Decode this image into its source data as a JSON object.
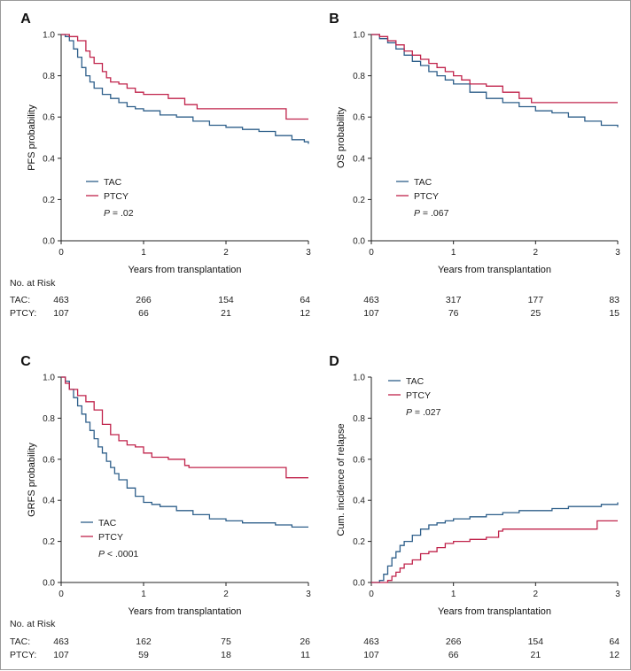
{
  "colors": {
    "TAC": "#2e5f8a",
    "PTCY": "#c0234b"
  },
  "risk_title": "No. at Risk",
  "risk_rows": [
    "TAC:",
    "PTCY:"
  ],
  "chart_data": [
    {
      "panel": "A",
      "type": "line",
      "step": true,
      "xlabel": "Years from transplantation",
      "ylabel": "PFS probability",
      "xlim": [
        0,
        3
      ],
      "ylim": [
        0,
        1.0
      ],
      "xticks": [
        "0",
        "1",
        "2",
        "3"
      ],
      "yticks": [
        "0.0",
        "0.2",
        "0.4",
        "0.6",
        "0.8",
        "1.0"
      ],
      "legend_position": "bottom-left",
      "pvalue": {
        "prefix": "P",
        "text": " = .02"
      },
      "series": [
        {
          "name": "TAC",
          "points": [
            [
              0,
              1.0
            ],
            [
              0.05,
              0.99
            ],
            [
              0.1,
              0.97
            ],
            [
              0.15,
              0.93
            ],
            [
              0.2,
              0.89
            ],
            [
              0.25,
              0.84
            ],
            [
              0.3,
              0.8
            ],
            [
              0.35,
              0.77
            ],
            [
              0.4,
              0.74
            ],
            [
              0.5,
              0.71
            ],
            [
              0.6,
              0.69
            ],
            [
              0.7,
              0.67
            ],
            [
              0.8,
              0.65
            ],
            [
              0.9,
              0.64
            ],
            [
              1.0,
              0.63
            ],
            [
              1.2,
              0.61
            ],
            [
              1.4,
              0.6
            ],
            [
              1.6,
              0.58
            ],
            [
              1.8,
              0.56
            ],
            [
              2.0,
              0.55
            ],
            [
              2.2,
              0.54
            ],
            [
              2.4,
              0.53
            ],
            [
              2.6,
              0.51
            ],
            [
              2.8,
              0.49
            ],
            [
              2.95,
              0.48
            ],
            [
              3.0,
              0.47
            ]
          ]
        },
        {
          "name": "PTCY",
          "points": [
            [
              0,
              1.0
            ],
            [
              0.1,
              0.99
            ],
            [
              0.2,
              0.97
            ],
            [
              0.3,
              0.92
            ],
            [
              0.35,
              0.89
            ],
            [
              0.4,
              0.86
            ],
            [
              0.5,
              0.82
            ],
            [
              0.55,
              0.79
            ],
            [
              0.6,
              0.77
            ],
            [
              0.7,
              0.76
            ],
            [
              0.8,
              0.74
            ],
            [
              0.9,
              0.72
            ],
            [
              1.0,
              0.71
            ],
            [
              1.3,
              0.69
            ],
            [
              1.5,
              0.66
            ],
            [
              1.65,
              0.64
            ],
            [
              2.0,
              0.64
            ],
            [
              2.73,
              0.64
            ],
            [
              2.73,
              0.59
            ],
            [
              3.0,
              0.59
            ]
          ]
        }
      ],
      "risk": {
        "TAC": [
          "463",
          "266",
          "154",
          "64"
        ],
        "PTCY": [
          "107",
          "66",
          "21",
          "12"
        ]
      }
    },
    {
      "panel": "B",
      "type": "line",
      "step": true,
      "xlabel": "Years from transplantation",
      "ylabel": "OS probability",
      "xlim": [
        0,
        3
      ],
      "ylim": [
        0,
        1.0
      ],
      "xticks": [
        "0",
        "1",
        "2",
        "3"
      ],
      "yticks": [
        "0.0",
        "0.2",
        "0.4",
        "0.6",
        "0.8",
        "1.0"
      ],
      "legend_position": "bottom-left",
      "pvalue": {
        "prefix": "P",
        "text": " = .067"
      },
      "series": [
        {
          "name": "TAC",
          "points": [
            [
              0,
              1.0
            ],
            [
              0.1,
              0.98
            ],
            [
              0.2,
              0.96
            ],
            [
              0.3,
              0.93
            ],
            [
              0.4,
              0.9
            ],
            [
              0.5,
              0.87
            ],
            [
              0.6,
              0.85
            ],
            [
              0.7,
              0.82
            ],
            [
              0.8,
              0.8
            ],
            [
              0.9,
              0.78
            ],
            [
              1.0,
              0.76
            ],
            [
              1.2,
              0.72
            ],
            [
              1.4,
              0.69
            ],
            [
              1.6,
              0.67
            ],
            [
              1.8,
              0.65
            ],
            [
              2.0,
              0.63
            ],
            [
              2.2,
              0.62
            ],
            [
              2.4,
              0.6
            ],
            [
              2.6,
              0.58
            ],
            [
              2.8,
              0.56
            ],
            [
              3.0,
              0.55
            ]
          ]
        },
        {
          "name": "PTCY",
          "points": [
            [
              0,
              1.0
            ],
            [
              0.1,
              0.99
            ],
            [
              0.2,
              0.97
            ],
            [
              0.3,
              0.95
            ],
            [
              0.4,
              0.92
            ],
            [
              0.5,
              0.9
            ],
            [
              0.6,
              0.88
            ],
            [
              0.7,
              0.86
            ],
            [
              0.8,
              0.84
            ],
            [
              0.9,
              0.82
            ],
            [
              1.0,
              0.8
            ],
            [
              1.1,
              0.78
            ],
            [
              1.2,
              0.76
            ],
            [
              1.4,
              0.75
            ],
            [
              1.6,
              0.72
            ],
            [
              1.8,
              0.69
            ],
            [
              1.95,
              0.67
            ],
            [
              3.0,
              0.67
            ]
          ]
        }
      ],
      "risk": {
        "TAC": [
          "463",
          "317",
          "177",
          "83"
        ],
        "PTCY": [
          "107",
          "76",
          "25",
          "15"
        ]
      }
    },
    {
      "panel": "C",
      "type": "line",
      "step": true,
      "xlabel": "Years from transplantation",
      "ylabel": "GRFS probability",
      "xlim": [
        0,
        3
      ],
      "ylim": [
        0,
        1.0
      ],
      "xticks": [
        "0",
        "1",
        "2",
        "3"
      ],
      "yticks": [
        "0.0",
        "0.2",
        "0.4",
        "0.6",
        "0.8",
        "1.0"
      ],
      "legend_position": "bottom-left",
      "pvalue": {
        "prefix": "P",
        "text": " < .0001"
      },
      "series": [
        {
          "name": "TAC",
          "points": [
            [
              0,
              1.0
            ],
            [
              0.05,
              0.98
            ],
            [
              0.1,
              0.94
            ],
            [
              0.15,
              0.9
            ],
            [
              0.2,
              0.86
            ],
            [
              0.25,
              0.82
            ],
            [
              0.3,
              0.78
            ],
            [
              0.35,
              0.74
            ],
            [
              0.4,
              0.7
            ],
            [
              0.45,
              0.66
            ],
            [
              0.5,
              0.63
            ],
            [
              0.55,
              0.59
            ],
            [
              0.6,
              0.56
            ],
            [
              0.65,
              0.53
            ],
            [
              0.7,
              0.5
            ],
            [
              0.8,
              0.46
            ],
            [
              0.9,
              0.42
            ],
            [
              1.0,
              0.39
            ],
            [
              1.1,
              0.38
            ],
            [
              1.2,
              0.37
            ],
            [
              1.4,
              0.35
            ],
            [
              1.6,
              0.33
            ],
            [
              1.8,
              0.31
            ],
            [
              2.0,
              0.3
            ],
            [
              2.2,
              0.29
            ],
            [
              2.4,
              0.29
            ],
            [
              2.6,
              0.28
            ],
            [
              2.8,
              0.27
            ],
            [
              3.0,
              0.27
            ]
          ]
        },
        {
          "name": "PTCY",
          "points": [
            [
              0,
              1.0
            ],
            [
              0.05,
              0.97
            ],
            [
              0.1,
              0.94
            ],
            [
              0.2,
              0.91
            ],
            [
              0.3,
              0.88
            ],
            [
              0.4,
              0.84
            ],
            [
              0.5,
              0.77
            ],
            [
              0.6,
              0.72
            ],
            [
              0.7,
              0.69
            ],
            [
              0.8,
              0.67
            ],
            [
              0.9,
              0.66
            ],
            [
              1.0,
              0.63
            ],
            [
              1.1,
              0.61
            ],
            [
              1.3,
              0.6
            ],
            [
              1.5,
              0.57
            ],
            [
              1.55,
              0.56
            ],
            [
              2.0,
              0.56
            ],
            [
              2.73,
              0.56
            ],
            [
              2.73,
              0.51
            ],
            [
              3.0,
              0.51
            ]
          ]
        }
      ],
      "risk": {
        "TAC": [
          "463",
          "162",
          "75",
          "26"
        ],
        "PTCY": [
          "107",
          "59",
          "18",
          "11"
        ]
      }
    },
    {
      "panel": "D",
      "type": "line",
      "step": true,
      "xlabel": "Years from transplantation",
      "ylabel": "Cum. incidence of relapse",
      "xlim": [
        0,
        3
      ],
      "ylim": [
        0,
        1.0
      ],
      "xticks": [
        "0",
        "1",
        "2",
        "3"
      ],
      "yticks": [
        "0.0",
        "0.2",
        "0.4",
        "0.6",
        "0.8",
        "1.0"
      ],
      "legend_position": "top-left",
      "pvalue": {
        "prefix": "P",
        "text": " = .027"
      },
      "series": [
        {
          "name": "TAC",
          "points": [
            [
              0,
              0.0
            ],
            [
              0.1,
              0.01
            ],
            [
              0.15,
              0.04
            ],
            [
              0.2,
              0.08
            ],
            [
              0.25,
              0.12
            ],
            [
              0.3,
              0.15
            ],
            [
              0.35,
              0.18
            ],
            [
              0.4,
              0.2
            ],
            [
              0.5,
              0.23
            ],
            [
              0.6,
              0.26
            ],
            [
              0.7,
              0.28
            ],
            [
              0.8,
              0.29
            ],
            [
              0.9,
              0.3
            ],
            [
              1.0,
              0.31
            ],
            [
              1.2,
              0.32
            ],
            [
              1.4,
              0.33
            ],
            [
              1.6,
              0.34
            ],
            [
              1.8,
              0.35
            ],
            [
              2.0,
              0.35
            ],
            [
              2.2,
              0.36
            ],
            [
              2.4,
              0.37
            ],
            [
              2.6,
              0.37
            ],
            [
              2.8,
              0.38
            ],
            [
              3.0,
              0.39
            ]
          ]
        },
        {
          "name": "PTCY",
          "points": [
            [
              0,
              0.0
            ],
            [
              0.2,
              0.01
            ],
            [
              0.25,
              0.03
            ],
            [
              0.3,
              0.05
            ],
            [
              0.35,
              0.07
            ],
            [
              0.4,
              0.09
            ],
            [
              0.5,
              0.11
            ],
            [
              0.6,
              0.14
            ],
            [
              0.7,
              0.15
            ],
            [
              0.8,
              0.17
            ],
            [
              0.9,
              0.19
            ],
            [
              1.0,
              0.2
            ],
            [
              1.2,
              0.21
            ],
            [
              1.4,
              0.22
            ],
            [
              1.55,
              0.25
            ],
            [
              1.6,
              0.26
            ],
            [
              2.0,
              0.26
            ],
            [
              2.75,
              0.26
            ],
            [
              2.75,
              0.3
            ],
            [
              3.0,
              0.3
            ]
          ]
        }
      ],
      "risk": {
        "TAC": [
          "463",
          "266",
          "154",
          "64"
        ],
        "PTCY": [
          "107",
          "66",
          "21",
          "12"
        ]
      }
    }
  ]
}
